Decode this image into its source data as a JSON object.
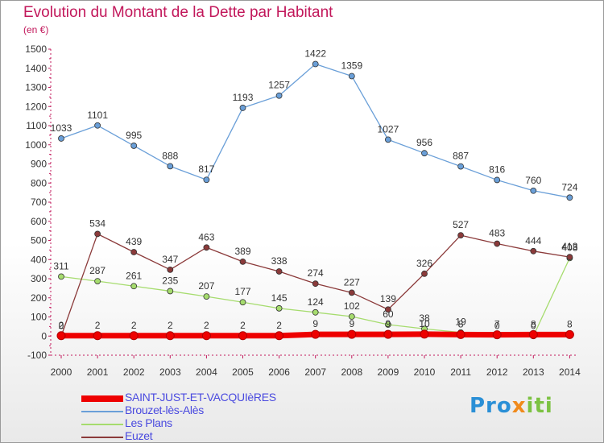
{
  "title": "Evolution du Montant de la Dette par Habitant",
  "subtitle": "(en €)",
  "logo_text": "Proxiti",
  "chart_data": {
    "type": "line",
    "title": "Evolution du Montant de la Dette par Habitant",
    "subtitle": "(en €)",
    "categories": [
      "2000",
      "2001",
      "2002",
      "2003",
      "2004",
      "2005",
      "2006",
      "2007",
      "2008",
      "2009",
      "2010",
      "2011",
      "2012",
      "2013",
      "2014"
    ],
    "ylim": [
      -100,
      1500
    ],
    "yticks": [
      -100,
      0,
      100,
      200,
      300,
      400,
      500,
      600,
      700,
      800,
      900,
      1000,
      1100,
      1200,
      1300,
      1400,
      1500
    ],
    "grid": false,
    "legend_position": "bottom-left",
    "series": [
      {
        "name": "SAINT-JUST-ET-VACQUIèRES",
        "color": "#ee0000",
        "values": [
          2,
          2,
          2,
          2,
          2,
          2,
          2,
          9,
          9,
          9,
          10,
          8,
          7,
          8,
          8
        ],
        "labels": [
          "2",
          "2",
          "2",
          "2",
          "2",
          "2",
          "2",
          "9",
          "9",
          "9",
          "10",
          "8",
          "7",
          "8",
          "8"
        ]
      },
      {
        "name": "Brouzet-lès-Alès",
        "color": "#6a9fd8",
        "values": [
          1033,
          1101,
          995,
          888,
          817,
          1193,
          1257,
          1422,
          1359,
          1027,
          956,
          887,
          816,
          760,
          724
        ],
        "labels": [
          "1033",
          "1101",
          "995",
          "888",
          "817",
          "1193",
          "1257",
          "1422",
          "1359",
          "1027",
          "956",
          "887",
          "816",
          "760",
          "724"
        ]
      },
      {
        "name": "Les Plans",
        "color": "#a6dc6e",
        "values": [
          311,
          287,
          261,
          235,
          207,
          177,
          145,
          124,
          102,
          60,
          38,
          19,
          0,
          0,
          408
        ],
        "labels": [
          "311",
          "287",
          "261",
          "235",
          "207",
          "177",
          "145",
          "124",
          "102",
          "60",
          "38",
          "19",
          "0",
          "0",
          "408"
        ]
      },
      {
        "name": "Euzet",
        "color": "#8b3a3a",
        "values": [
          0,
          534,
          439,
          347,
          463,
          389,
          338,
          274,
          227,
          139,
          326,
          527,
          483,
          444,
          413
        ],
        "labels": [
          "0",
          "534",
          "439",
          "347",
          "463",
          "389",
          "338",
          "274",
          "227",
          "139",
          "326",
          "527",
          "483",
          "444",
          "413"
        ]
      }
    ]
  }
}
